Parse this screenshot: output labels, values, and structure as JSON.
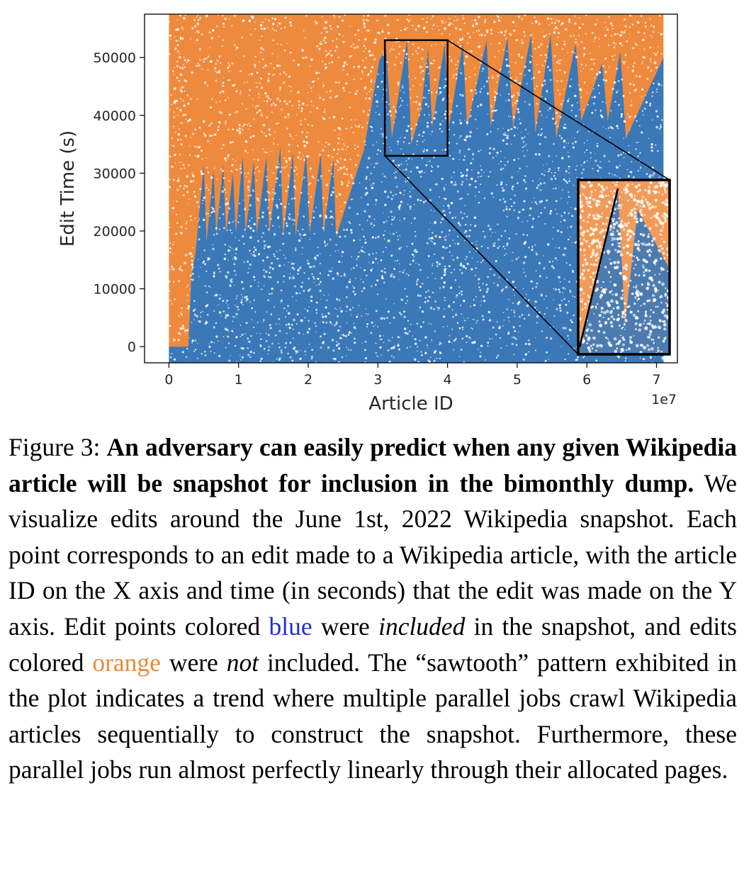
{
  "chart_data": {
    "type": "scatter",
    "xlabel": "Article ID",
    "ylabel": "Edit Time (s)",
    "x_offset_label": "1e7",
    "x_ticks": [
      0,
      1,
      2,
      3,
      4,
      5,
      6,
      7
    ],
    "x_tick_labels": [
      "0",
      "1",
      "2",
      "3",
      "4",
      "5",
      "6",
      "7"
    ],
    "y_ticks": [
      0,
      10000,
      20000,
      30000,
      40000,
      50000
    ],
    "y_tick_labels": [
      "0",
      "10000",
      "20000",
      "30000",
      "40000",
      "50000"
    ],
    "xlim": [
      -0.35,
      7.3
    ],
    "ylim": [
      -2800,
      57500
    ],
    "data_xrange": [
      0,
      7.1
    ],
    "series": [
      {
        "name": "included",
        "color": "#3a78b8"
      },
      {
        "name": "not included",
        "color": "#ee8a3d"
      }
    ],
    "zoom_box": {
      "x": [
        3.1,
        4.0
      ],
      "y": [
        33000,
        53000
      ]
    },
    "sawtooth_boundary": [
      [
        0.0,
        0
      ],
      [
        0.28,
        0
      ],
      [
        0.32,
        12000
      ],
      [
        0.38,
        16000
      ],
      [
        0.5,
        31500
      ],
      [
        0.54,
        18000
      ],
      [
        0.64,
        30500
      ],
      [
        0.68,
        19500
      ],
      [
        0.78,
        31500
      ],
      [
        0.82,
        19500
      ],
      [
        0.92,
        30000
      ],
      [
        0.96,
        19500
      ],
      [
        1.06,
        33000
      ],
      [
        1.1,
        19500
      ],
      [
        1.22,
        32000
      ],
      [
        1.26,
        19500
      ],
      [
        1.4,
        33000
      ],
      [
        1.44,
        19500
      ],
      [
        1.6,
        34500
      ],
      [
        1.64,
        19000
      ],
      [
        1.78,
        33500
      ],
      [
        1.82,
        19000
      ],
      [
        1.97,
        33500
      ],
      [
        2.02,
        19500
      ],
      [
        2.18,
        33500
      ],
      [
        2.22,
        19500
      ],
      [
        2.36,
        32500
      ],
      [
        2.4,
        19000
      ],
      [
        2.8,
        34000
      ],
      [
        3.02,
        49500
      ],
      [
        3.12,
        51500
      ],
      [
        3.2,
        36000
      ],
      [
        3.42,
        53000
      ],
      [
        3.48,
        35000
      ],
      [
        3.62,
        41000
      ],
      [
        3.72,
        51500
      ],
      [
        3.78,
        38000
      ],
      [
        3.96,
        52500
      ],
      [
        4.02,
        38000
      ],
      [
        4.22,
        52500
      ],
      [
        4.28,
        38000
      ],
      [
        4.56,
        53000
      ],
      [
        4.62,
        38000
      ],
      [
        4.86,
        53500
      ],
      [
        4.94,
        38000
      ],
      [
        5.2,
        54000
      ],
      [
        5.26,
        37000
      ],
      [
        5.48,
        54000
      ],
      [
        5.56,
        36000
      ],
      [
        5.84,
        52500
      ],
      [
        5.92,
        39000
      ],
      [
        6.22,
        49000
      ],
      [
        6.3,
        39000
      ],
      [
        6.48,
        51000
      ],
      [
        6.56,
        36000
      ],
      [
        7.1,
        50000
      ]
    ]
  },
  "caption": {
    "figure_label": "Figure 3: ",
    "bold_sentence": "An adversary can easily predict when any given Wikipedia article will be snapshot for inclusion in the bi­monthly dump.",
    "text_1": " We visualize edits around the June 1st, 2022 Wikipedia snapshot. Each point corresponds to an edit made to a Wikipedia article, with the article ID on the X axis and time (in seconds) that the edit was made on the Y axis. Edit points colored ",
    "blue_word": "blue",
    "text_2": " were ",
    "italic_included": "included",
    "text_3": " in the snapshot, and edits colored ",
    "orange_word": "orange",
    "text_4": " were ",
    "italic_not": "not",
    "text_5": " included. The “sawtooth” pattern exhibited in the plot indicates a trend where multiple paral­lel jobs crawl Wikipedia articles sequentially to construct the snapshot. Furthermore, these parallel jobs run almost perfectly linearly through their allocated pages."
  }
}
